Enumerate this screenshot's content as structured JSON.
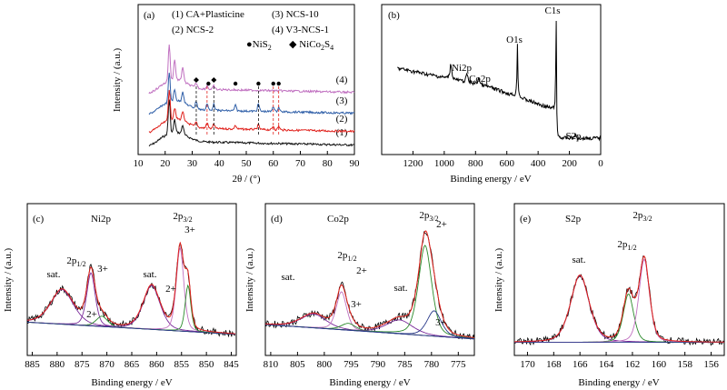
{
  "chart_data": [
    {
      "id": "a",
      "type": "line",
      "panel_label": "(a)",
      "xlabel": "2θ / (°)",
      "ylabel": "Intensity / (a.u.)",
      "xlim": [
        10,
        90
      ],
      "xticks": [
        "10",
        "20",
        "30",
        "40",
        "50",
        "60",
        "70",
        "80",
        "90"
      ],
      "legend_lines": [
        {
          "num": "(1)",
          "text": "CA+Plasticine"
        },
        {
          "num": "(2)",
          "text": "NCS-2"
        },
        {
          "num": "(3)",
          "text": "NCS-10"
        },
        {
          "num": "(4)",
          "text": "V3-NCS-1"
        }
      ],
      "markers_legend": [
        {
          "symbol": "●",
          "name": "NiS",
          "sub": "2"
        },
        {
          "symbol": "◆",
          "name": "NiCo",
          "sub": "2",
          "name2": "S",
          "sub2": "4"
        }
      ],
      "series": [
        {
          "name": "(1)",
          "color": "#111111",
          "offset": 0,
          "peaks": [
            [
              21.5,
              38
            ],
            [
              23.5,
              14
            ],
            [
              26.5,
              10
            ]
          ]
        },
        {
          "name": "(2)",
          "color": "#e0201b",
          "offset": 18,
          "peaks": [
            [
              21.5,
              34
            ],
            [
              23.5,
              12
            ],
            [
              26.5,
              10
            ],
            [
              31.5,
              5
            ],
            [
              35.5,
              6
            ],
            [
              38,
              5
            ],
            [
              46,
              4
            ],
            [
              54.5,
              5
            ],
            [
              60,
              4
            ],
            [
              62,
              4
            ]
          ]
        },
        {
          "name": "(3)",
          "color": "#2f5fa8",
          "offset": 37,
          "peaks": [
            [
              21.5,
              32
            ],
            [
              23.5,
              12
            ],
            [
              26.5,
              12
            ],
            [
              31.5,
              8
            ],
            [
              35.5,
              7
            ],
            [
              38,
              7
            ],
            [
              46,
              6
            ],
            [
              54.5,
              8
            ],
            [
              60,
              6
            ],
            [
              62,
              5
            ]
          ]
        },
        {
          "name": "(4)",
          "color": "#c070c0",
          "offset": 62,
          "peaks": [
            [
              21.5,
              40
            ],
            [
              23.5,
              22
            ],
            [
              26.5,
              16
            ],
            [
              31.5,
              5
            ],
            [
              35.5,
              4
            ],
            [
              38,
              4
            ]
          ]
        }
      ],
      "ni_markers": [
        36,
        46,
        54.5,
        60,
        62
      ],
      "nico_markers": [
        31.5,
        38
      ],
      "dash_lines": [
        {
          "x": 31.5,
          "color": "#111"
        },
        {
          "x": 35.5,
          "color": "#e0201b"
        },
        {
          "x": 38,
          "color": "#111"
        },
        {
          "x": 54.5,
          "color": "#111"
        },
        {
          "x": 60,
          "color": "#e0201b"
        },
        {
          "x": 62,
          "color": "#e0201b"
        }
      ]
    },
    {
      "id": "b",
      "type": "line",
      "panel_label": "(b)",
      "xlabel": "Binding energy / eV",
      "xlim": [
        1400,
        0
      ],
      "xticks": [
        "1200",
        "1000",
        "800",
        "600",
        "400",
        "200",
        "0"
      ],
      "annotations": [
        {
          "text": "C1s",
          "x": 285
        },
        {
          "text": "O1s",
          "x": 532
        },
        {
          "text": "Ni2p",
          "x": 960
        },
        {
          "text": "Co2p",
          "x": 840
        },
        {
          "text": "S2p",
          "x": 220
        }
      ]
    },
    {
      "id": "c",
      "type": "line",
      "panel_label": "(c)",
      "element": "Ni2p",
      "xlabel": "Binding energy / eV",
      "ylabel": "Intensity / (a.u.)",
      "xlim": [
        886,
        844
      ],
      "xticks": [
        "885",
        "880",
        "875",
        "870",
        "865",
        "860",
        "855",
        "850",
        "845"
      ],
      "annotations": [
        {
          "text": "sat.",
          "x": 879
        },
        {
          "text": "3+",
          "x": 870
        },
        {
          "text": "sat.",
          "x": 861
        },
        {
          "text": "2+",
          "x": 870.5
        },
        {
          "text": "3+",
          "x": 853.5
        },
        {
          "text": "2+",
          "x": 854
        }
      ],
      "peak_labels": [
        {
          "text": "2p",
          "sub": "1/2",
          "x": 873
        },
        {
          "text": "2p",
          "sub": "3/2",
          "x": 855
        }
      ]
    },
    {
      "id": "d",
      "type": "line",
      "panel_label": "(d)",
      "element": "Co2p",
      "xlabel": "Binding energy / eV",
      "ylabel": "Intensity / (a.u.)",
      "xlim": [
        811,
        772
      ],
      "xticks": [
        "810",
        "805",
        "800",
        "795",
        "790",
        "785",
        "780",
        "775"
      ],
      "annotations": [
        {
          "text": "sat.",
          "x": 802
        },
        {
          "text": "2+",
          "x": 795
        },
        {
          "text": "3+",
          "x": 792
        },
        {
          "text": "sat.",
          "x": 786
        },
        {
          "text": "2+",
          "x": 780
        },
        {
          "text": "3+",
          "x": 778
        }
      ],
      "peak_labels": [
        {
          "text": "2p",
          "sub": "1/2",
          "x": 797.5
        },
        {
          "text": "2p",
          "sub": "3/2",
          "x": 781.5
        }
      ]
    },
    {
      "id": "e",
      "type": "line",
      "panel_label": "(e)",
      "element": "S2p",
      "xlabel": "Binding energy / eV",
      "ylabel": "Intensity / (a.u.)",
      "xlim": [
        171,
        155
      ],
      "xticks": [
        "170",
        "168",
        "166",
        "164",
        "162",
        "160",
        "158",
        "156"
      ],
      "annotations": [
        {
          "text": "sat.",
          "x": 166.2
        }
      ],
      "peak_labels": [
        {
          "text": "2p",
          "sub": "1/2",
          "x": 162.8
        },
        {
          "text": "2p",
          "sub": "3/2",
          "x": 161
        }
      ]
    }
  ]
}
